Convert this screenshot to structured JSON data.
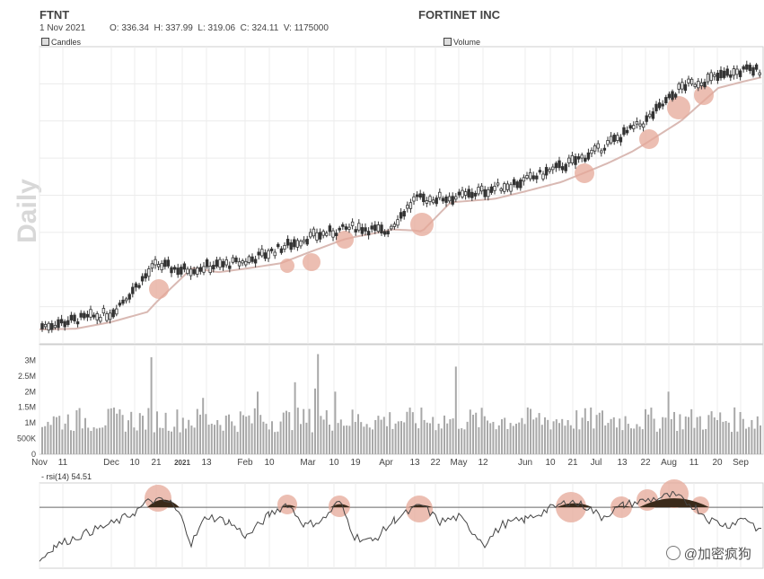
{
  "header": {
    "ticker": "FTNT",
    "company": "FORTINET INC",
    "date": "1 Nov 2021",
    "ohlcv": "O: 336.34  H: 337.99  L: 319.06  C: 324.11  V: 1175000",
    "side_label": "Daily"
  },
  "legend": {
    "candles": "Candles",
    "volume": "Volume",
    "rsi": "rsi(14) 54.51"
  },
  "watermark": "@加密疯狗",
  "colors": {
    "candle": "#333333",
    "ma": "#d9b9b3",
    "highlight": "#e5a898",
    "rsi_line": "#444444",
    "rsi_fill": "#3a2a1a",
    "volume": "#a8a8a8"
  },
  "chart_data": [
    {
      "type": "candlestick",
      "title": "FORTINET INC",
      "x_ticks": [
        "Nov",
        "11",
        "Dec",
        "10",
        "21",
        "2021",
        "13",
        "Feb",
        "10",
        "Mar",
        "10",
        "19",
        "Apr",
        "13",
        "22",
        "May",
        "12",
        "Jun",
        "10",
        "21",
        "Jul",
        "13",
        "22",
        "Aug",
        "11",
        "20",
        "Sep"
      ],
      "close_approx": [
        {
          "date": "Nov",
          "value": 0.03
        },
        {
          "date": "Dec",
          "value": 0.08
        },
        {
          "date": "21",
          "value": 0.26
        },
        {
          "date": "2021",
          "value": 0.24
        },
        {
          "date": "Feb",
          "value": 0.27
        },
        {
          "date": "Mar",
          "value": 0.36
        },
        {
          "date": "19",
          "value": 0.4
        },
        {
          "date": "Apr",
          "value": 0.38
        },
        {
          "date": "13",
          "value": 0.5
        },
        {
          "date": "May",
          "value": 0.51
        },
        {
          "date": "Jun",
          "value": 0.57
        },
        {
          "date": "21",
          "value": 0.64
        },
        {
          "date": "Jul",
          "value": 0.68
        },
        {
          "date": "22",
          "value": 0.79
        },
        {
          "date": "Aug",
          "value": 0.92
        },
        {
          "date": "Sep",
          "value": 0.98
        }
      ],
      "highlighted": [
        "21",
        "Mar",
        "10",
        "19",
        "13",
        "21",
        "Jul",
        "Aug"
      ]
    },
    {
      "type": "bar",
      "title": "Volume",
      "y_ticks": [
        "3M",
        "2.5M",
        "2M",
        "1.5M",
        "1M",
        "500K",
        "0"
      ],
      "ylim": [
        0,
        3500000
      ]
    },
    {
      "type": "line",
      "title": "rsi(14) 54.51",
      "series": [
        {
          "name": "rsi(14)",
          "last": 54.51
        }
      ],
      "threshold": 70
    }
  ]
}
